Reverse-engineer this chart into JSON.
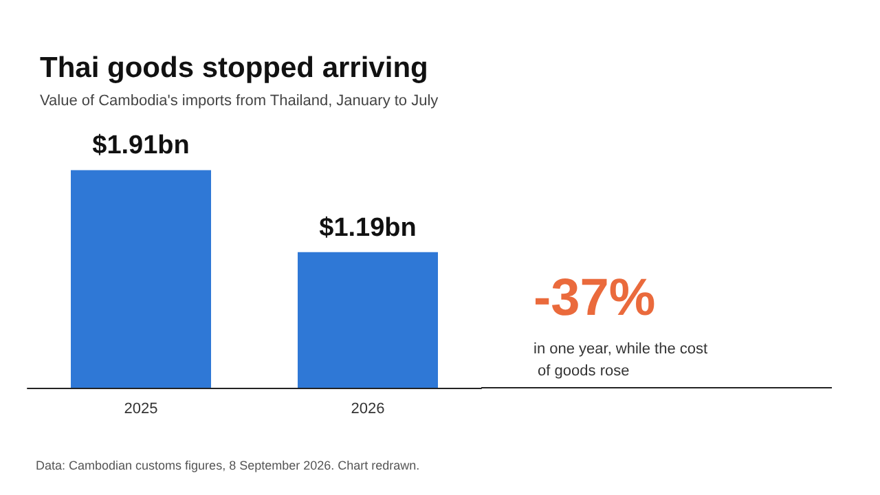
{
  "chart_data": {
    "type": "bar",
    "title": "Thai goods stopped arriving",
    "subtitle": "Value of Cambodia's imports from Thailand, January to July",
    "categories": [
      "2025",
      "2026"
    ],
    "values": [
      1.91,
      1.19
    ],
    "value_labels": [
      "$1.91bn",
      "$1.19bn"
    ],
    "color": "#2f78d6",
    "annotations": [
      "-37%",
      "in one year, while the cost of goods rose",
      "Data: Cambodian customs figures, 8 September 2026. Chart redrawn."
    ]
  }
}
